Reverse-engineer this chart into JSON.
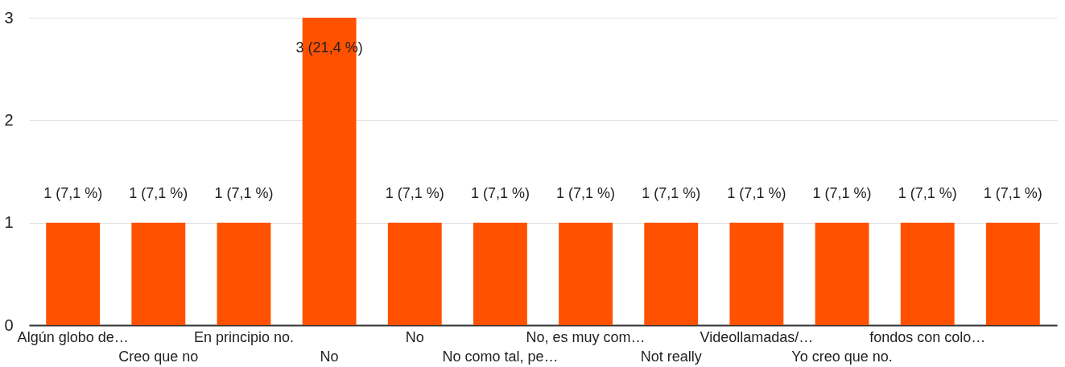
{
  "chart_data": {
    "type": "bar",
    "categories": [
      "Algún globo de…",
      "Creo que no",
      "En principio no.",
      "No",
      "No",
      "No como tal, pe…",
      "No, es muy com…",
      "Not really",
      "Videollamadas/…",
      "Yo creo que no.",
      "fondos con colo…",
      null
    ],
    "values": [
      1,
      1,
      1,
      3,
      1,
      1,
      1,
      1,
      1,
      1,
      1,
      1
    ],
    "value_labels": [
      "1 (7,1 %)",
      "1 (7,1 %)",
      "1 (7,1 %)",
      "3 (21,4 %)",
      "1 (7,1 %)",
      "1 (7,1 %)",
      "1 (7,1 %)",
      "1 (7,1 %)",
      "1 (7,1 %)",
      "1 (7,1 %)",
      "1 (7,1 %)",
      "1 (7,1 %)"
    ],
    "color": "#ff5100",
    "ylim": [
      0,
      3
    ],
    "yticks": [
      0,
      1,
      2,
      3
    ],
    "grid": true
  }
}
